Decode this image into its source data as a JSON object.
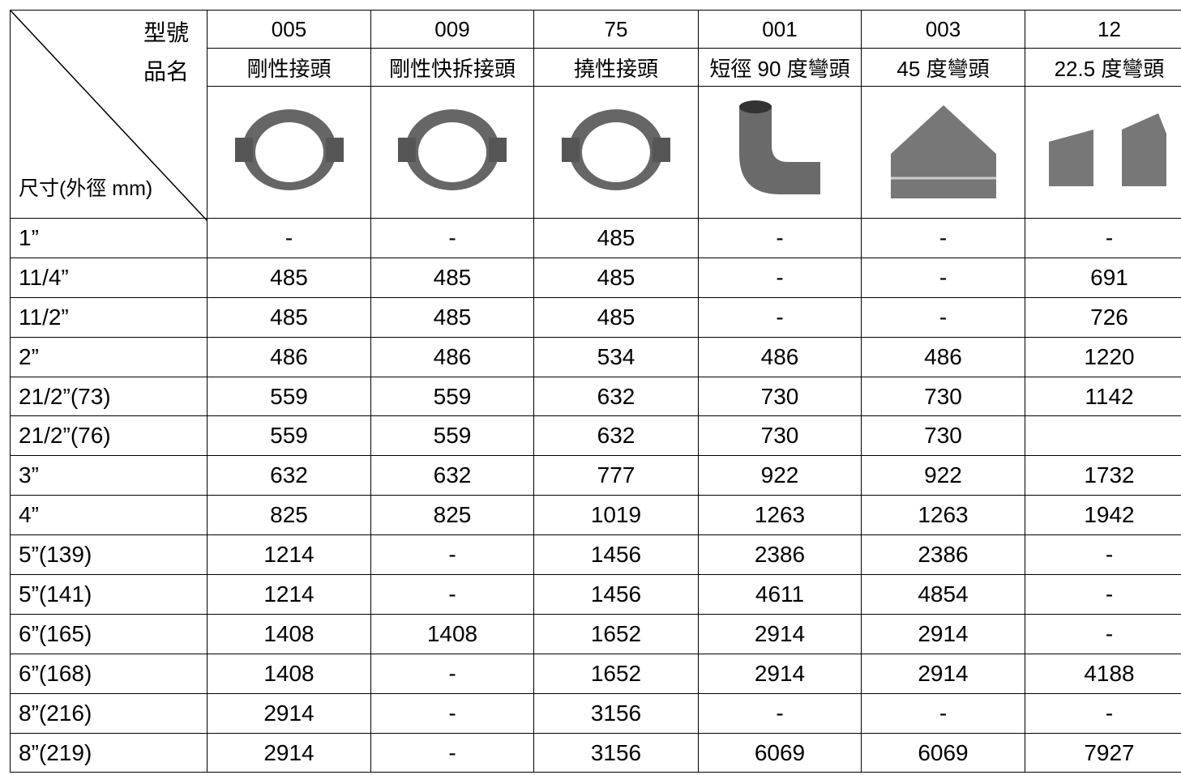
{
  "table": {
    "corner": {
      "model_label": "型號",
      "name_label": "品名",
      "size_label": "尺寸(外徑 mm)"
    },
    "models": [
      "005",
      "009",
      "75",
      "001",
      "003",
      "12"
    ],
    "names": [
      "剛性接頭",
      "剛性快拆接頭",
      "撓性接頭",
      "短徑 90 度彎頭",
      "45 度彎頭",
      "22.5 度彎頭"
    ],
    "rows": [
      [
        "1”",
        "-",
        "-",
        485,
        "-",
        "-",
        "-"
      ],
      [
        "11/4”",
        485,
        485,
        485,
        "-",
        "-",
        691
      ],
      [
        "11/2”",
        485,
        485,
        485,
        "-",
        "-",
        726
      ],
      [
        "2”",
        486,
        486,
        534,
        486,
        486,
        1220
      ],
      [
        "21/2”(73)",
        559,
        559,
        632,
        730,
        730,
        1142
      ],
      [
        "21/2”(76)",
        559,
        559,
        632,
        730,
        730,
        null
      ],
      [
        "3”",
        632,
        632,
        777,
        922,
        922,
        1732
      ],
      [
        "4”",
        825,
        825,
        1019,
        1263,
        1263,
        1942
      ],
      [
        "5”(139)",
        1214,
        "-",
        1456,
        2386,
        2386,
        "-"
      ],
      [
        "5”(141)",
        1214,
        "-",
        1456,
        4611,
        4854,
        "-"
      ],
      [
        "6”(165)",
        1408,
        1408,
        1652,
        2914,
        2914,
        "-"
      ],
      [
        "6”(168)",
        1408,
        "-",
        1652,
        2914,
        2914,
        4188
      ],
      [
        "8”(216)",
        2914,
        "-",
        3156,
        "-",
        "-",
        "-"
      ],
      [
        "8”(219)",
        2914,
        "-",
        3156,
        6069,
        6069,
        7927
      ]
    ]
  }
}
